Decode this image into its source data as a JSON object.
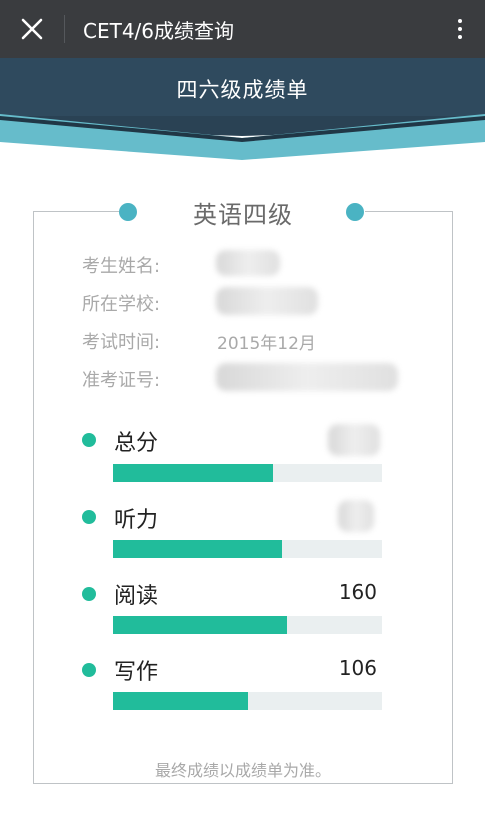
{
  "topbar": {
    "close_icon": "close-icon",
    "title": "CET4/6成绩查询",
    "more_icon": "more-vertical-icon"
  },
  "banner": {
    "title": "四六级成绩单"
  },
  "card": {
    "title": "英语四级",
    "info": [
      {
        "label": "考生姓名:",
        "value": ""
      },
      {
        "label": "所在学校:",
        "value": ""
      },
      {
        "label": "考试时间:",
        "value": "2015年12月"
      },
      {
        "label": "准考证号:",
        "value": ""
      }
    ],
    "scores": [
      {
        "label": "总分",
        "value": "",
        "fraction": 0.595
      },
      {
        "label": "听力",
        "value": "",
        "fraction": 0.63
      },
      {
        "label": "阅读",
        "value": "160",
        "fraction": 0.645
      },
      {
        "label": "写作",
        "value": "106",
        "fraction": 0.5
      }
    ],
    "footer": "最终成绩以成绩单为准。"
  },
  "colors": {
    "topbar": "#3a3c3f",
    "banner_dark": "#2f4a5e",
    "banner_teal": "#66bccb",
    "accent_dot": "#4ab3c3",
    "score_green": "#21bc9b",
    "bar_track": "#eaeff0"
  }
}
